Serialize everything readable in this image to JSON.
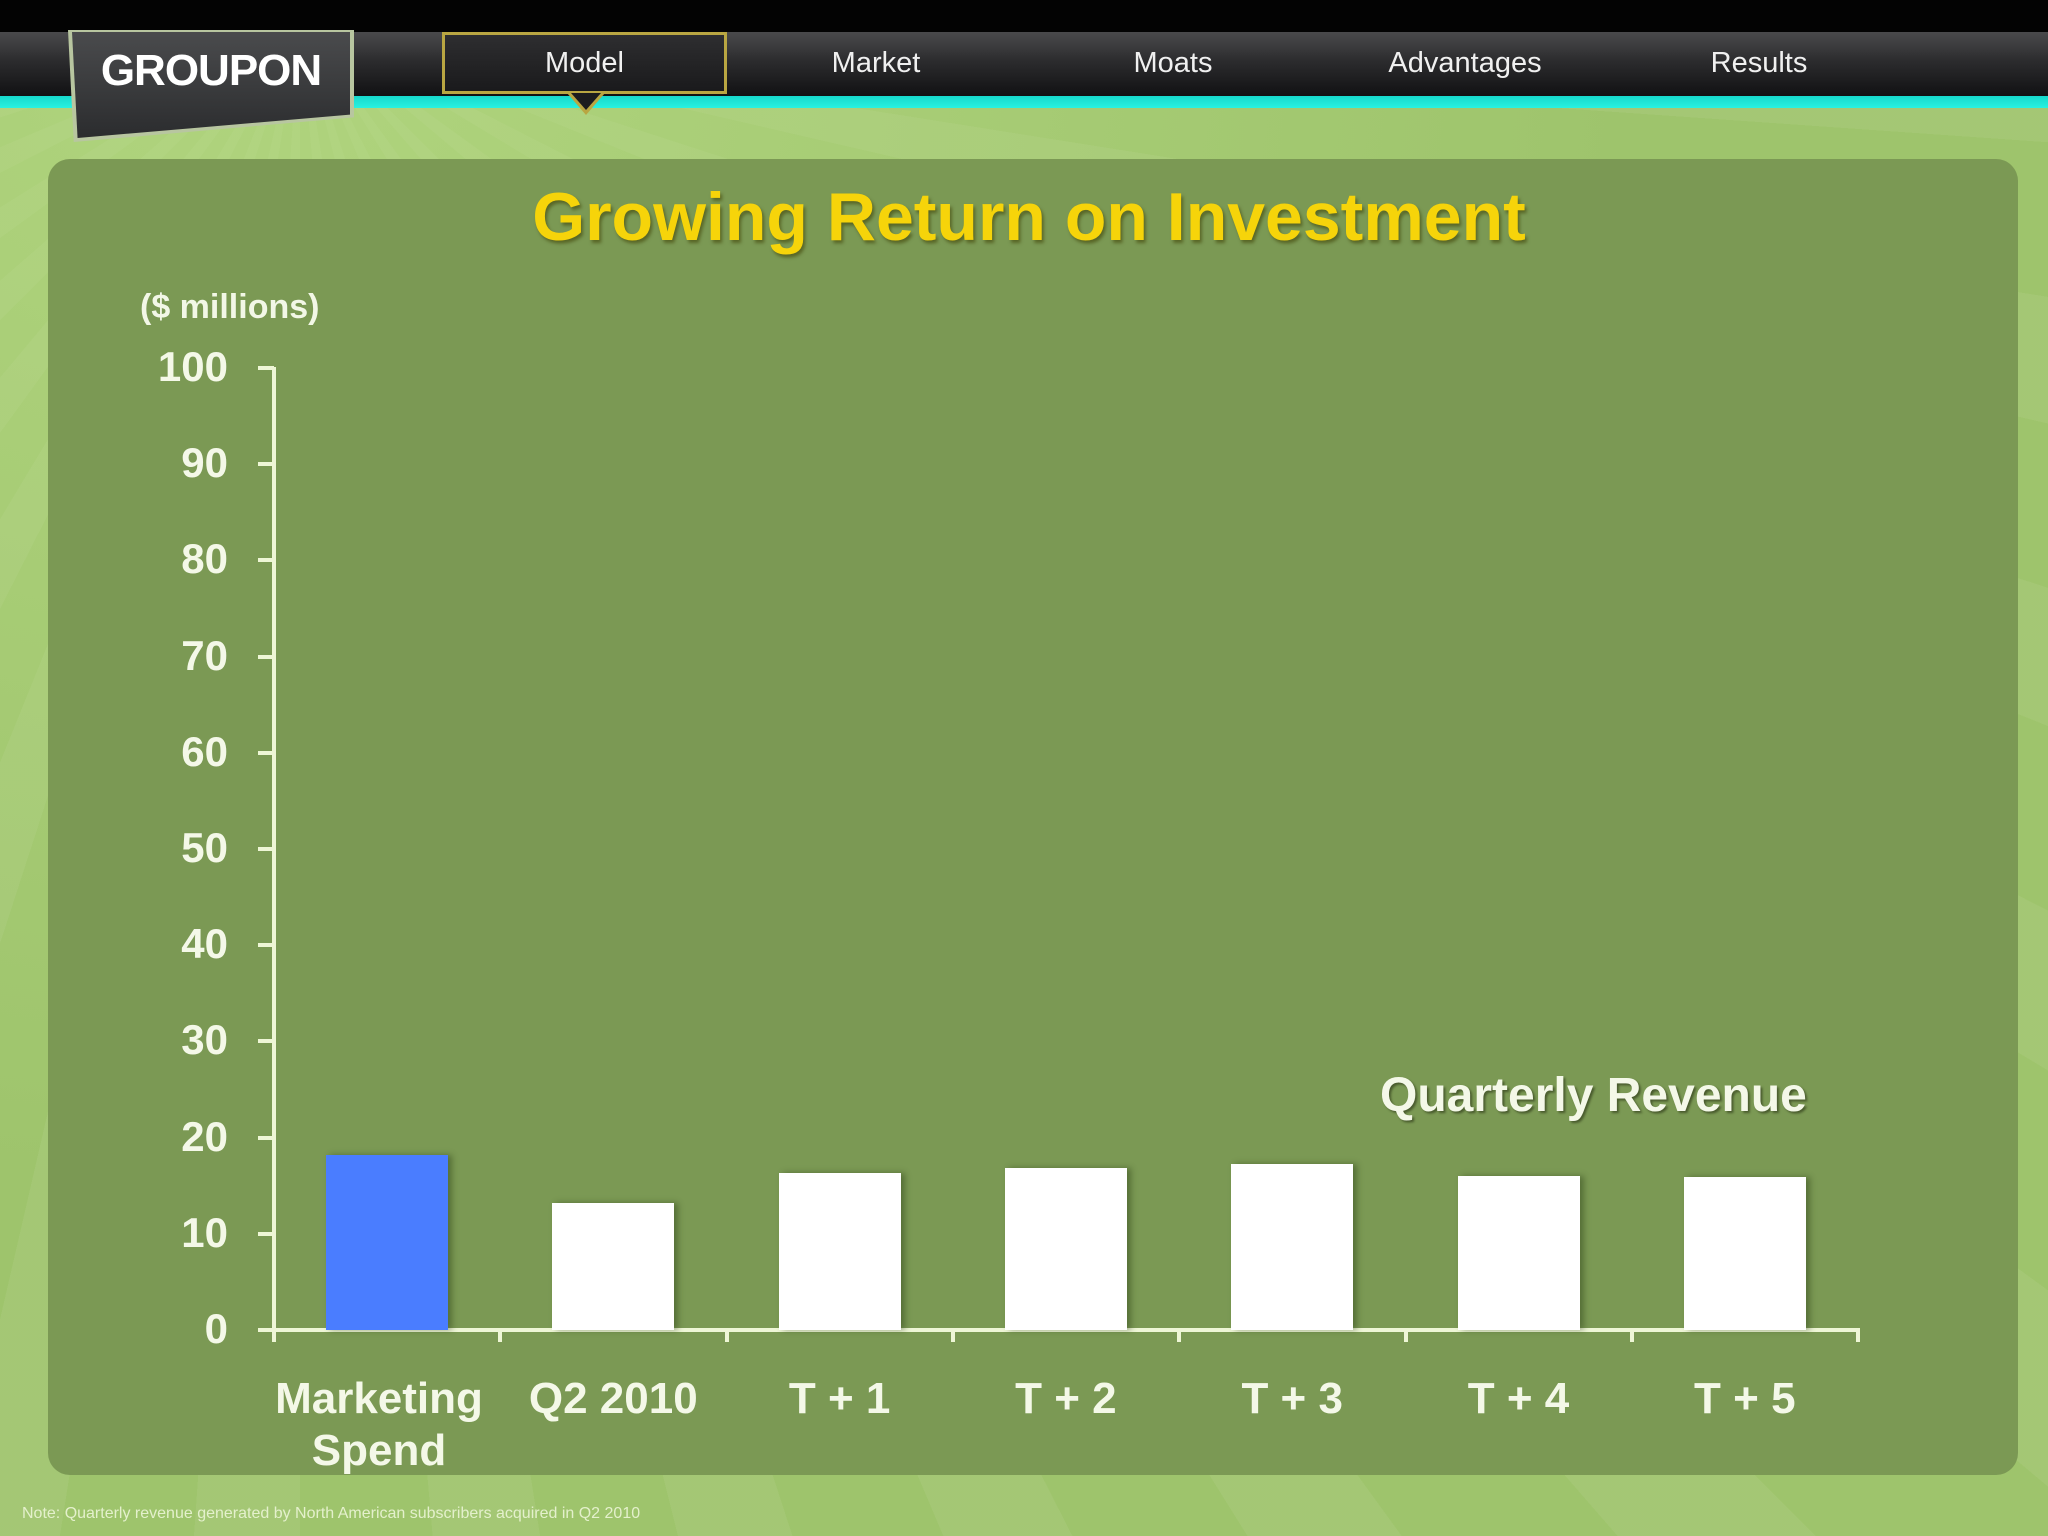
{
  "nav": {
    "logo": "GROUPON",
    "items": [
      {
        "label": "Model",
        "active": true
      },
      {
        "label": "Market",
        "active": false
      },
      {
        "label": "Moats",
        "active": false
      },
      {
        "label": "Advantages",
        "active": false
      },
      {
        "label": "Results",
        "active": false
      }
    ]
  },
  "slide": {
    "title": "Growing Return on Investment",
    "unit_label": "($ millions)",
    "series_label": "Quarterly Revenue",
    "note": "Note: Quarterly revenue generated by North American subscribers acquired in Q2 2010"
  },
  "colors": {
    "accent_bar": "#4a7dff",
    "revenue_bar": "#ffffff",
    "title": "#f6d40a",
    "panel": "#7b9954",
    "background": "#9ec46c",
    "nav_stripe": "#22eedd",
    "active_tab_border": "#b9a642"
  },
  "chart_data": {
    "type": "bar",
    "title": "Growing Return on Investment",
    "xlabel": "",
    "ylabel": "($ millions)",
    "ylim": [
      0,
      100
    ],
    "yticks": [
      0,
      10,
      20,
      30,
      40,
      50,
      60,
      70,
      80,
      90,
      100
    ],
    "grid": false,
    "categories": [
      "Marketing Spend",
      "Q2 2010",
      "T + 1",
      "T + 2",
      "T + 3",
      "T + 4",
      "T + 5"
    ],
    "series": [
      {
        "name": "Marketing Spend",
        "values": [
          18.2,
          null,
          null,
          null,
          null,
          null,
          null
        ],
        "color": "#4a7dff"
      },
      {
        "name": "Quarterly Revenue",
        "values": [
          null,
          13.2,
          16.3,
          16.8,
          17.3,
          16.0,
          15.9
        ],
        "color": "#ffffff"
      }
    ],
    "annotations": [
      "Quarterly Revenue"
    ]
  }
}
